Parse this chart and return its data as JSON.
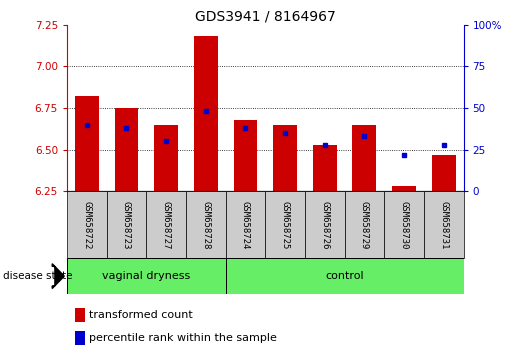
{
  "title": "GDS3941 / 8164967",
  "samples": [
    "GSM658722",
    "GSM658723",
    "GSM658727",
    "GSM658728",
    "GSM658724",
    "GSM658725",
    "GSM658726",
    "GSM658729",
    "GSM658730",
    "GSM658731"
  ],
  "red_values": [
    6.82,
    6.75,
    6.65,
    7.18,
    6.68,
    6.65,
    6.53,
    6.65,
    6.28,
    6.47
  ],
  "blue_values": [
    40,
    38,
    30,
    48,
    38,
    35,
    28,
    33,
    22,
    28
  ],
  "ylim_left": [
    6.25,
    7.25
  ],
  "ylim_right": [
    0,
    100
  ],
  "yticks_left": [
    6.25,
    6.5,
    6.75,
    7.0,
    7.25
  ],
  "yticks_right": [
    0,
    25,
    50,
    75,
    100
  ],
  "baseline": 6.25,
  "bar_color": "#cc0000",
  "blue_color": "#0000cc",
  "n_vaginal": 4,
  "n_control": 6,
  "group_color": "#66ee66",
  "label_bg_color": "#cccccc",
  "legend_red": "transformed count",
  "legend_blue": "percentile rank within the sample",
  "disease_state_label": "disease state",
  "title_fontsize": 10,
  "axis_color_left": "#cc0000",
  "axis_color_right": "#0000cc",
  "bar_width": 0.6
}
